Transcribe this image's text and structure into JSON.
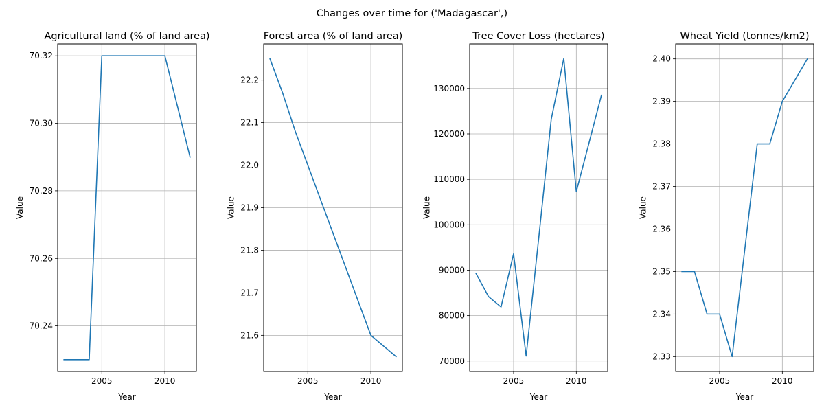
{
  "figure": {
    "suptitle": "Changes over time for ('Madagascar',)",
    "line_color": "#1f77b4",
    "grid": true
  },
  "chart_data": [
    {
      "type": "line",
      "title": "Agricultural land (% of land area)",
      "xlabel": "Year",
      "ylabel": "Value",
      "xlim": [
        2001.5,
        2012.5
      ],
      "ylim": [
        70.2265,
        70.3235
      ],
      "xticks": [
        2005,
        2010
      ],
      "xtick_labels": [
        "2005",
        "2010"
      ],
      "yticks": [
        70.24,
        70.26,
        70.28,
        70.3,
        70.32
      ],
      "ytick_labels": [
        "70.24",
        "70.26",
        "70.28",
        "70.30",
        "70.32"
      ],
      "x": [
        2002,
        2003,
        2004,
        2005,
        2006,
        2007,
        2008,
        2009,
        2010,
        2011,
        2012
      ],
      "values": [
        70.23,
        70.23,
        70.23,
        70.32,
        70.32,
        70.32,
        70.32,
        70.32,
        70.32,
        70.305,
        70.29
      ]
    },
    {
      "type": "line",
      "title": "Forest area (% of land area)",
      "xlabel": "Year",
      "ylabel": "Value",
      "xlim": [
        2001.5,
        2012.5
      ],
      "ylim": [
        21.515,
        22.285
      ],
      "xticks": [
        2005,
        2010
      ],
      "xtick_labels": [
        "2005",
        "2010"
      ],
      "yticks": [
        21.6,
        21.7,
        21.8,
        21.9,
        22.0,
        22.1,
        22.2
      ],
      "ytick_labels": [
        "21.6",
        "21.7",
        "21.8",
        "21.9",
        "22.0",
        "22.1",
        "22.2"
      ],
      "x": [
        2002,
        2003,
        2004,
        2005,
        2006,
        2007,
        2008,
        2009,
        2010,
        2011,
        2012
      ],
      "values": [
        22.25,
        22.17,
        22.08,
        22.0,
        21.92,
        21.84,
        21.76,
        21.68,
        21.6,
        21.575,
        21.55
      ]
    },
    {
      "type": "line",
      "title": "Tree Cover Loss (hectares)",
      "xlabel": "Year",
      "ylabel": "Value",
      "xlim": [
        2001.5,
        2012.5
      ],
      "ylim": [
        67700,
        139800
      ],
      "xticks": [
        2005,
        2010
      ],
      "xtick_labels": [
        "2005",
        "2010"
      ],
      "yticks": [
        70000,
        80000,
        90000,
        100000,
        110000,
        120000,
        130000
      ],
      "ytick_labels": [
        "70000",
        "80000",
        "90000",
        "100000",
        "110000",
        "120000",
        "130000"
      ],
      "x": [
        2002,
        2003,
        2004,
        2005,
        2006,
        2007,
        2008,
        2009,
        2010,
        2011,
        2012
      ],
      "values": [
        89300,
        84200,
        81900,
        93600,
        71100,
        97000,
        123200,
        136600,
        107300,
        117900,
        128500
      ]
    },
    {
      "type": "line",
      "title": "Wheat Yield (tonnes/km2)",
      "xlabel": "Year",
      "ylabel": "Value",
      "xlim": [
        2001.5,
        2012.5
      ],
      "ylim": [
        2.3265,
        2.4035
      ],
      "xticks": [
        2005,
        2010
      ],
      "xtick_labels": [
        "2005",
        "2010"
      ],
      "yticks": [
        2.33,
        2.34,
        2.35,
        2.36,
        2.37,
        2.38,
        2.39,
        2.4
      ],
      "ytick_labels": [
        "2.33",
        "2.34",
        "2.35",
        "2.36",
        "2.37",
        "2.38",
        "2.39",
        "2.40"
      ],
      "x": [
        2002,
        2003,
        2004,
        2005,
        2006,
        2007,
        2008,
        2009,
        2010,
        2011,
        2012
      ],
      "values": [
        2.35,
        2.35,
        2.34,
        2.34,
        2.33,
        2.355,
        2.38,
        2.38,
        2.39,
        2.395,
        2.4
      ]
    }
  ]
}
